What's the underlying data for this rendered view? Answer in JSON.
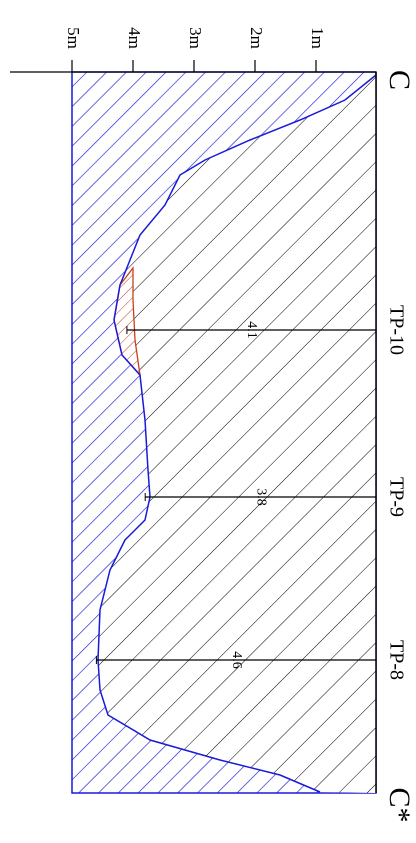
{
  "depth_axis": {
    "ticks": [
      "1m",
      "2m",
      "3m",
      "4m",
      "5m"
    ]
  },
  "profile": {
    "start": "C",
    "end": "C*"
  },
  "test_pits": [
    {
      "label": "TP-10",
      "depth": 4.1
    },
    {
      "label": "TP-9",
      "depth": 3.8
    },
    {
      "label": "TP-8",
      "depth": 4.6
    }
  ]
}
